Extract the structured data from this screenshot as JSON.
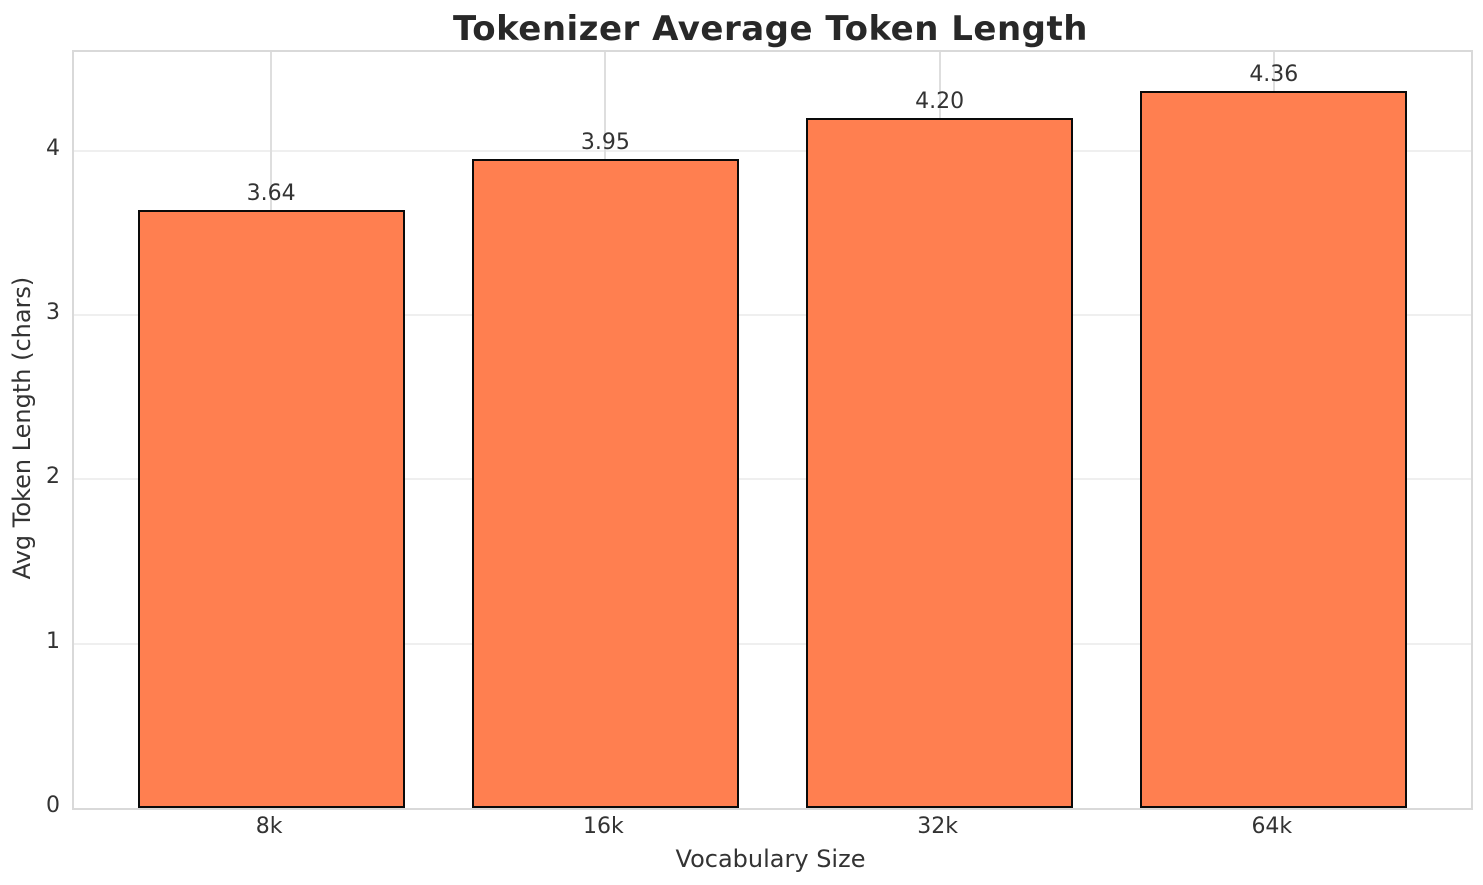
{
  "chart_data": {
    "type": "bar",
    "title": "Tokenizer Average Token Length",
    "xlabel": "Vocabulary Size",
    "ylabel": "Avg Token Length (chars)",
    "categories": [
      "8k",
      "16k",
      "32k",
      "64k"
    ],
    "values": [
      3.64,
      3.95,
      4.2,
      4.36
    ],
    "value_labels": [
      "3.64",
      "3.95",
      "4.20",
      "4.36"
    ],
    "yticks": [
      "0",
      "1",
      "2",
      "3",
      "4"
    ],
    "ytick_values": [
      0,
      1,
      2,
      3,
      4
    ],
    "ylim": [
      0,
      4.6
    ],
    "bar_width_ratio": 0.8,
    "grid": true,
    "legend_position": "none",
    "colors": {
      "bar_fill": "#FF7F50",
      "bar_edge": "#0a0a0a",
      "grid_h": "#efefef",
      "grid_v": "#dedede",
      "spine": "#d9d9d9",
      "text": "#333333",
      "title_text": "#282828",
      "background": "#ffffff"
    }
  }
}
